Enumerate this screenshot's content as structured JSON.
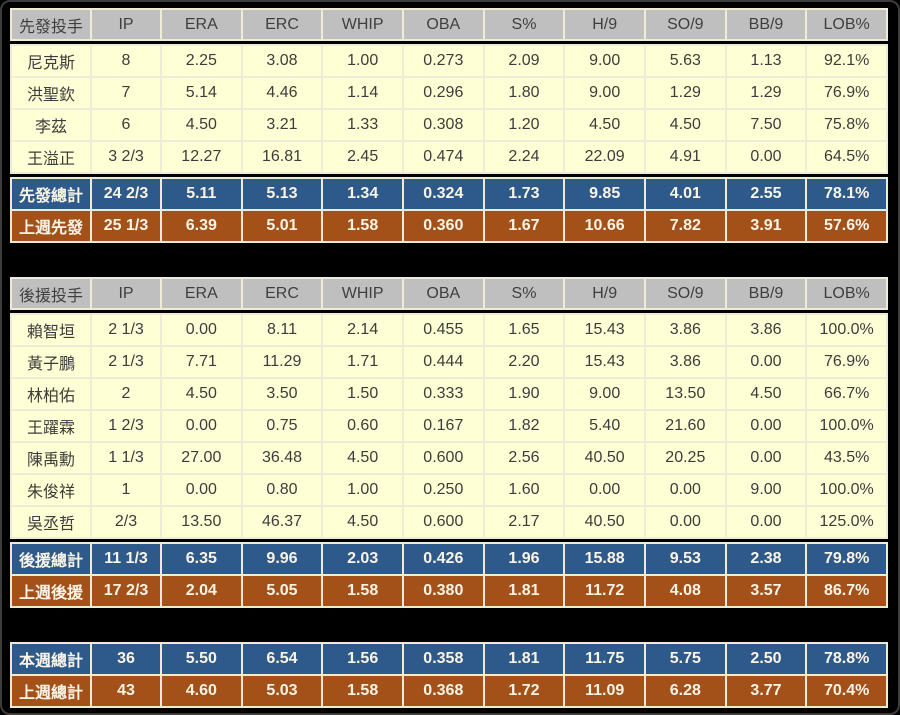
{
  "colors": {
    "page_bg": "#000000",
    "header_bg": "#bfbfbf",
    "header_text": "#3f3f3f",
    "row_bg": "#ffffd6",
    "row_text": "#3c3c3c",
    "total_bg": "#2e5a8b",
    "lastweek_bg": "#a35019",
    "accent_text": "#faf4e6",
    "grid_line": "#f0ebd6"
  },
  "stat_columns": [
    "IP",
    "ERA",
    "ERC",
    "WHIP",
    "OBA",
    "S%",
    "H/9",
    "SO/9",
    "BB/9",
    "LOB%"
  ],
  "tables": [
    {
      "title": "先發投手",
      "players": [
        {
          "name": "尼克斯",
          "values": [
            "8",
            "2.25",
            "3.08",
            "1.00",
            "0.273",
            "2.09",
            "9.00",
            "5.63",
            "1.13",
            "92.1%"
          ]
        },
        {
          "name": "洪聖欽",
          "values": [
            "7",
            "5.14",
            "4.46",
            "1.14",
            "0.296",
            "1.80",
            "9.00",
            "1.29",
            "1.29",
            "76.9%"
          ]
        },
        {
          "name": "李茲",
          "values": [
            "6",
            "4.50",
            "3.21",
            "1.33",
            "0.308",
            "1.20",
            "4.50",
            "4.50",
            "7.50",
            "75.8%"
          ]
        },
        {
          "name": "王溢正",
          "values": [
            "3 2/3",
            "12.27",
            "16.81",
            "2.45",
            "0.474",
            "2.24",
            "22.09",
            "4.91",
            "0.00",
            "64.5%"
          ]
        }
      ],
      "total": {
        "name": "先發總計",
        "values": [
          "24 2/3",
          "5.11",
          "5.13",
          "1.34",
          "0.324",
          "1.73",
          "9.85",
          "4.01",
          "2.55",
          "78.1%"
        ]
      },
      "last_week": {
        "name": "上週先發",
        "values": [
          "25 1/3",
          "6.39",
          "5.01",
          "1.58",
          "0.360",
          "1.67",
          "10.66",
          "7.82",
          "3.91",
          "57.6%"
        ]
      }
    },
    {
      "title": "後援投手",
      "players": [
        {
          "name": "賴智垣",
          "values": [
            "2 1/3",
            "0.00",
            "8.11",
            "2.14",
            "0.455",
            "1.65",
            "15.43",
            "3.86",
            "3.86",
            "100.0%"
          ]
        },
        {
          "name": "黃子鵬",
          "values": [
            "2 1/3",
            "7.71",
            "11.29",
            "1.71",
            "0.444",
            "2.20",
            "15.43",
            "3.86",
            "0.00",
            "76.9%"
          ]
        },
        {
          "name": "林柏佑",
          "values": [
            "2",
            "4.50",
            "3.50",
            "1.50",
            "0.333",
            "1.90",
            "9.00",
            "13.50",
            "4.50",
            "66.7%"
          ]
        },
        {
          "name": "王躍霖",
          "values": [
            "1 2/3",
            "0.00",
            "0.75",
            "0.60",
            "0.167",
            "1.82",
            "5.40",
            "21.60",
            "0.00",
            "100.0%"
          ]
        },
        {
          "name": "陳禹勳",
          "values": [
            "1 1/3",
            "27.00",
            "36.48",
            "4.50",
            "0.600",
            "2.56",
            "40.50",
            "20.25",
            "0.00",
            "43.5%"
          ]
        },
        {
          "name": "朱俊祥",
          "values": [
            "1",
            "0.00",
            "0.80",
            "1.00",
            "0.250",
            "1.60",
            "0.00",
            "0.00",
            "9.00",
            "100.0%"
          ]
        },
        {
          "name": "吳丞哲",
          "values": [
            "2/3",
            "13.50",
            "46.37",
            "4.50",
            "0.600",
            "2.17",
            "40.50",
            "0.00",
            "0.00",
            "125.0%"
          ]
        }
      ],
      "total": {
        "name": "後援總計",
        "values": [
          "11 1/3",
          "6.35",
          "9.96",
          "2.03",
          "0.426",
          "1.96",
          "15.88",
          "9.53",
          "2.38",
          "79.8%"
        ]
      },
      "last_week": {
        "name": "上週後援",
        "values": [
          "17 2/3",
          "2.04",
          "5.05",
          "1.58",
          "0.380",
          "1.81",
          "11.72",
          "4.08",
          "3.57",
          "86.7%"
        ]
      }
    }
  ],
  "summary": {
    "this_week": {
      "name": "本週總計",
      "values": [
        "36",
        "5.50",
        "6.54",
        "1.56",
        "0.358",
        "1.81",
        "11.75",
        "5.75",
        "2.50",
        "78.8%"
      ]
    },
    "last_week": {
      "name": "上週總計",
      "values": [
        "43",
        "4.60",
        "5.03",
        "1.58",
        "0.368",
        "1.72",
        "11.09",
        "6.28",
        "3.77",
        "70.4%"
      ]
    }
  }
}
